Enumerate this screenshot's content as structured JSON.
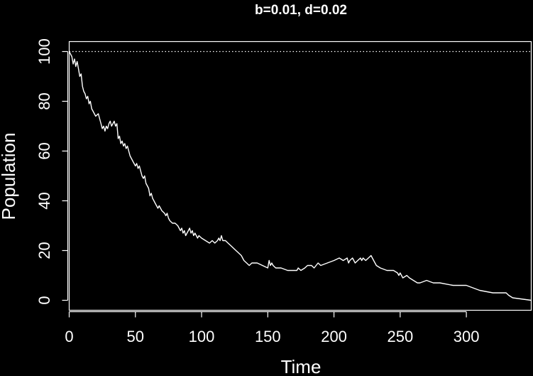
{
  "chart_data": {
    "type": "line",
    "title": "b=0.01, d=0.02",
    "xlabel": "Time",
    "ylabel": "Population",
    "xlim": [
      0,
      349
    ],
    "ylim": [
      -4,
      104
    ],
    "xticks": [
      0,
      50,
      100,
      150,
      200,
      250,
      300
    ],
    "yticks": [
      0,
      20,
      40,
      60,
      80,
      100
    ],
    "reference_line": {
      "y": 100,
      "style": "dotted"
    },
    "colors": {
      "background": "#000000",
      "foreground": "#ffffff"
    },
    "series": [
      {
        "x": [
          0,
          2,
          3,
          4,
          5,
          6,
          7,
          8,
          9,
          10,
          11,
          12,
          13,
          14,
          15,
          16,
          17,
          18,
          20,
          22,
          24,
          25,
          26,
          27,
          28,
          29,
          30,
          31,
          32,
          33,
          34,
          35,
          36,
          37,
          38,
          39,
          40,
          41,
          42,
          43,
          44,
          45,
          46,
          47,
          48,
          49,
          50,
          51,
          52,
          53,
          54,
          55,
          56,
          57,
          58,
          59,
          60,
          61,
          62,
          63,
          64,
          65,
          66,
          67,
          68,
          70,
          72,
          73,
          74,
          75,
          76,
          78,
          80,
          82,
          84,
          85,
          86,
          87,
          88,
          89,
          90,
          91,
          92,
          93,
          94,
          95,
          96,
          97,
          98,
          100,
          103,
          106,
          108,
          110,
          112,
          113,
          114,
          115,
          116,
          118,
          120,
          122,
          124,
          126,
          128,
          130,
          132,
          134,
          136,
          138,
          142,
          146,
          150,
          151,
          152,
          153,
          154,
          156,
          160,
          165,
          170,
          172,
          173,
          175,
          178,
          180,
          183,
          185,
          188,
          190,
          195,
          200,
          204,
          207,
          210,
          211,
          212,
          214,
          216,
          218,
          220,
          221,
          222,
          224,
          226,
          228,
          230,
          232,
          235,
          240,
          245,
          248,
          249,
          250,
          251,
          252,
          255,
          257,
          260,
          263,
          265,
          270,
          275,
          280,
          290,
          300,
          305,
          310,
          320,
          325,
          330,
          332,
          335,
          349
        ],
        "y": [
          100,
          98,
          95,
          97,
          94,
          96,
          93,
          90,
          91,
          86,
          84,
          83,
          81,
          82,
          79,
          80,
          77,
          76,
          74,
          75,
          71,
          69,
          70,
          68,
          70,
          69,
          71,
          72,
          70,
          71,
          72,
          70,
          71,
          65,
          66,
          63,
          64,
          62,
          63,
          61,
          62,
          60,
          58,
          57,
          56,
          55,
          54,
          55,
          53,
          54,
          52,
          50,
          49,
          50,
          47,
          46,
          45,
          42,
          43,
          41,
          40,
          39,
          38,
          37,
          38,
          36,
          35,
          34,
          35,
          33,
          32,
          31,
          31,
          30,
          28,
          29,
          27,
          28,
          26,
          27,
          28,
          29,
          27,
          28,
          26,
          27,
          26,
          25,
          26,
          25,
          24,
          23,
          24,
          23,
          24,
          25,
          24,
          26,
          24,
          24,
          23,
          22,
          21,
          20,
          19,
          18,
          16,
          15,
          14,
          15,
          15,
          14,
          13,
          16,
          14,
          15,
          14,
          13,
          13,
          12,
          12,
          12,
          13,
          12,
          13,
          14,
          14,
          13,
          15,
          14,
          15,
          16,
          17,
          16,
          17,
          15,
          16,
          17,
          15,
          16,
          17,
          16,
          17,
          16,
          17,
          18,
          16,
          14,
          13,
          12,
          12,
          11,
          10,
          11,
          10,
          9,
          10,
          9,
          8,
          7,
          7,
          8,
          7,
          7,
          6,
          6,
          5,
          4,
          3,
          3,
          3,
          2,
          1,
          0
        ]
      }
    ]
  }
}
